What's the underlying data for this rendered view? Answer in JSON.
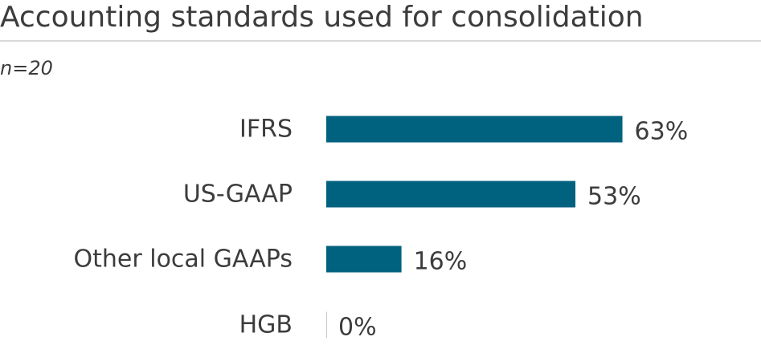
{
  "chart_data": {
    "type": "bar",
    "orientation": "horizontal",
    "title": "Accounting standards used for consolidation",
    "subtitle": "n=20",
    "categories": [
      "IFRS",
      "US-GAAP",
      "Other local GAAPs",
      "HGB"
    ],
    "values": [
      63,
      53,
      16,
      0
    ],
    "value_labels": [
      "63%",
      "53%",
      "16%",
      "0%"
    ],
    "unit": "%",
    "xlim": [
      0,
      100
    ],
    "grid": false,
    "legend": "none",
    "bar_color": "#00627f"
  }
}
